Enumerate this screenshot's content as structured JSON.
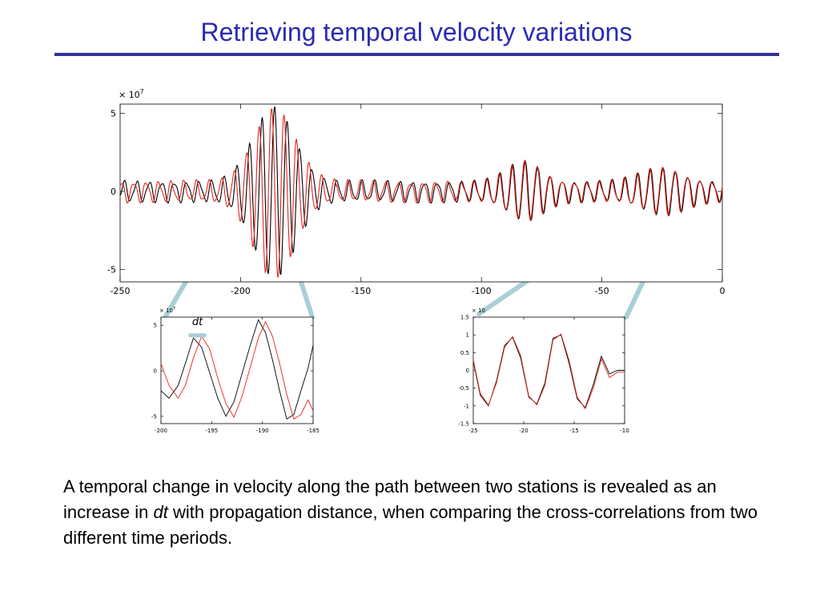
{
  "slide": {
    "title": "Retrieving temporal velocity variations"
  },
  "caption": {
    "part1": "A temporal change in velocity along the path between two stations is revealed as an increase in ",
    "emphasis": "dt",
    "part2": " with propagation distance, when comparing the cross-correlations from two different time periods."
  },
  "colors": {
    "title": "#2b2bb0",
    "rule": "#33339a",
    "trace_a": "#000000",
    "trace_b": "#e8231d",
    "connector": "#a9cfd6"
  },
  "chart_data": [
    {
      "id": "main",
      "type": "line",
      "xlim": [
        -250,
        0
      ],
      "ylim": [
        -5.8,
        5.6
      ],
      "xticks": [
        -250,
        -200,
        -150,
        -100,
        -50,
        0
      ],
      "xtick_labels": [
        "-250",
        "-200",
        "-150",
        "-100",
        "-50",
        "0"
      ],
      "yticks": [
        -5,
        0,
        5
      ],
      "ytick_labels": [
        "-5",
        "0",
        "5"
      ],
      "exponent_label": "× 10",
      "exponent_power": "7",
      "series": [
        {
          "color": "#000000"
        },
        {
          "color": "#e8231d"
        }
      ]
    },
    {
      "id": "zoom-early",
      "type": "line",
      "xlim": [
        -200,
        -185
      ],
      "ylim": [
        -5.8,
        5.9
      ],
      "xticks": [
        -200,
        -195,
        -190,
        -185
      ],
      "xtick_labels": [
        "-200",
        "-195",
        "-190",
        "-185"
      ],
      "yticks": [
        -5,
        0,
        5
      ],
      "ytick_labels": [
        "-5",
        "0",
        "5"
      ],
      "exponent_label": "× 10",
      "exponent_power": "7",
      "annotation": "dt",
      "series": [
        {
          "color": "#000000",
          "x": [
            -200,
            -199.2,
            -198.3,
            -197.6,
            -196.8,
            -196,
            -195.2,
            -194.4,
            -193.6,
            -192.8,
            -192,
            -191.2,
            -190.4,
            -189.7,
            -189,
            -188.3,
            -187.6,
            -186.9,
            -186.2,
            -185.5,
            -185
          ],
          "y": [
            -2.2,
            -3.0,
            -1.6,
            0.8,
            3.6,
            2.6,
            -0.2,
            -3.0,
            -5.0,
            -3.4,
            -0.3,
            2.8,
            5.6,
            4.2,
            1.2,
            -2.2,
            -5.3,
            -4.8,
            -2.2,
            0.3,
            2.8
          ]
        },
        {
          "color": "#e8231d",
          "x": [
            -200,
            -199.2,
            -198.3,
            -197.6,
            -196.8,
            -196,
            -195.2,
            -194.4,
            -193.6,
            -192.8,
            -192,
            -191.2,
            -190.4,
            -189.7,
            -189,
            -188.3,
            -187.6,
            -186.9,
            -186.2,
            -185.5,
            -185
          ],
          "y": [
            0.8,
            -1.6,
            -3.0,
            -1.6,
            1.4,
            3.8,
            2.4,
            -0.8,
            -3.6,
            -5.1,
            -2.8,
            0.4,
            3.6,
            5.4,
            3.8,
            0.8,
            -2.6,
            -5.3,
            -4.8,
            -3.2,
            -4.4
          ]
        }
      ]
    },
    {
      "id": "zoom-late",
      "type": "line",
      "xlim": [
        -25,
        -10
      ],
      "ylim": [
        -1.5,
        1.5
      ],
      "xticks": [
        -25,
        -20,
        -15,
        -10
      ],
      "xtick_labels": [
        "-25",
        "-20",
        "-15",
        "-10"
      ],
      "yticks": [
        -1.5,
        -1,
        -0.5,
        0,
        0.5,
        1,
        1.5
      ],
      "ytick_labels": [
        "-1.5",
        "-1",
        "-0.5",
        "0",
        "0.5",
        "1",
        "1.5"
      ],
      "exponent_label": "× 10",
      "exponent_power": "",
      "series": [
        {
          "color": "#000000",
          "x": [
            -25,
            -24.3,
            -23.5,
            -22.7,
            -21.9,
            -21.1,
            -20.3,
            -19.5,
            -18.7,
            -17.9,
            -17.1,
            -16.3,
            -15.5,
            -14.7,
            -13.9,
            -13.1,
            -12.3,
            -11.5,
            -10.7,
            -10
          ],
          "y": [
            0.25,
            -0.7,
            -1.0,
            -0.3,
            0.7,
            0.93,
            0.35,
            -0.75,
            -0.95,
            -0.35,
            0.9,
            1.0,
            0.2,
            -0.8,
            -1.05,
            -0.4,
            0.4,
            -0.1,
            0.0,
            0.0
          ]
        },
        {
          "color": "#e8231d",
          "x": [
            -25,
            -24.3,
            -23.5,
            -22.7,
            -21.9,
            -21.1,
            -20.3,
            -19.5,
            -18.7,
            -17.9,
            -17.1,
            -16.3,
            -15.5,
            -14.7,
            -13.9,
            -13.1,
            -12.3,
            -11.5,
            -10.7,
            -10
          ],
          "y": [
            0.3,
            -0.65,
            -0.98,
            -0.35,
            0.65,
            0.95,
            0.42,
            -0.72,
            -0.97,
            -0.42,
            0.85,
            1.02,
            0.28,
            -0.75,
            -1.08,
            -0.5,
            0.32,
            -0.2,
            -0.05,
            -0.05
          ]
        }
      ]
    }
  ]
}
